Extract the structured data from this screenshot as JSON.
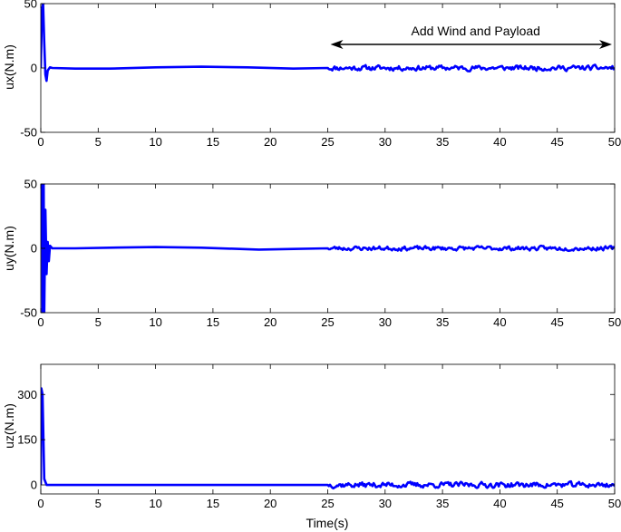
{
  "figure": {
    "xlabel": "Time(s)"
  },
  "chart_data": [
    {
      "type": "line",
      "ylabel": "ux(N.m)",
      "xlim": [
        0,
        50
      ],
      "ylim": [
        -50,
        50
      ],
      "xticks": [
        0,
        5,
        10,
        15,
        20,
        25,
        30,
        35,
        40,
        45,
        50
      ],
      "yticks": [
        -50,
        0,
        50
      ],
      "annotation": {
        "text": "Add Wind and Payload",
        "x_start": 25,
        "x_end": 50
      },
      "series": [
        {
          "color": "#0000ff",
          "x": [
            0,
            0.1,
            0.2,
            0.3,
            0.4,
            0.5,
            0.6,
            0.8,
            1.0,
            3,
            6,
            10,
            14,
            18,
            22,
            25
          ],
          "y": [
            0,
            45,
            50,
            20,
            -5,
            -10,
            -2,
            0.5,
            0,
            -0.5,
            -0.5,
            0.5,
            1,
            0.5,
            -0.5,
            0
          ],
          "noise": {
            "x_start": 25,
            "x_end": 50,
            "amplitude": 3,
            "seed": 11
          }
        }
      ]
    },
    {
      "type": "line",
      "ylabel": "uy(N.m)",
      "xlim": [
        0,
        50
      ],
      "ylim": [
        -50,
        50
      ],
      "xticks": [
        0,
        5,
        10,
        15,
        20,
        25,
        30,
        35,
        40,
        45,
        50
      ],
      "yticks": [
        -50,
        0,
        50
      ],
      "series": [
        {
          "color": "#0000ff",
          "x": [
            0,
            0.1,
            0.15,
            0.25,
            0.3,
            0.4,
            0.5,
            0.6,
            0.7,
            0.8,
            1.0,
            3,
            6,
            10,
            14,
            19,
            22,
            25
          ],
          "y": [
            0,
            50,
            -50,
            50,
            -50,
            30,
            -20,
            5,
            -10,
            2,
            0,
            0,
            0.5,
            1,
            0.5,
            -1,
            -0.5,
            0
          ],
          "noise": {
            "x_start": 25,
            "x_end": 50,
            "amplitude": 2.5,
            "seed": 23
          }
        }
      ]
    },
    {
      "type": "line",
      "ylabel": "uz(N.m)",
      "xlim": [
        0,
        50
      ],
      "ylim": [
        -30,
        400
      ],
      "xticks": [
        0,
        5,
        10,
        15,
        20,
        25,
        30,
        35,
        40,
        45,
        50
      ],
      "yticks": [
        0,
        150,
        300
      ],
      "series": [
        {
          "color": "#0000ff",
          "x": [
            0,
            0.05,
            0.15,
            0.3,
            0.5,
            1,
            25
          ],
          "y": [
            0,
            320,
            300,
            20,
            0,
            0,
            0
          ],
          "noise": {
            "x_start": 25,
            "x_end": 50,
            "amplitude": 14,
            "seed": 37
          }
        }
      ]
    }
  ]
}
